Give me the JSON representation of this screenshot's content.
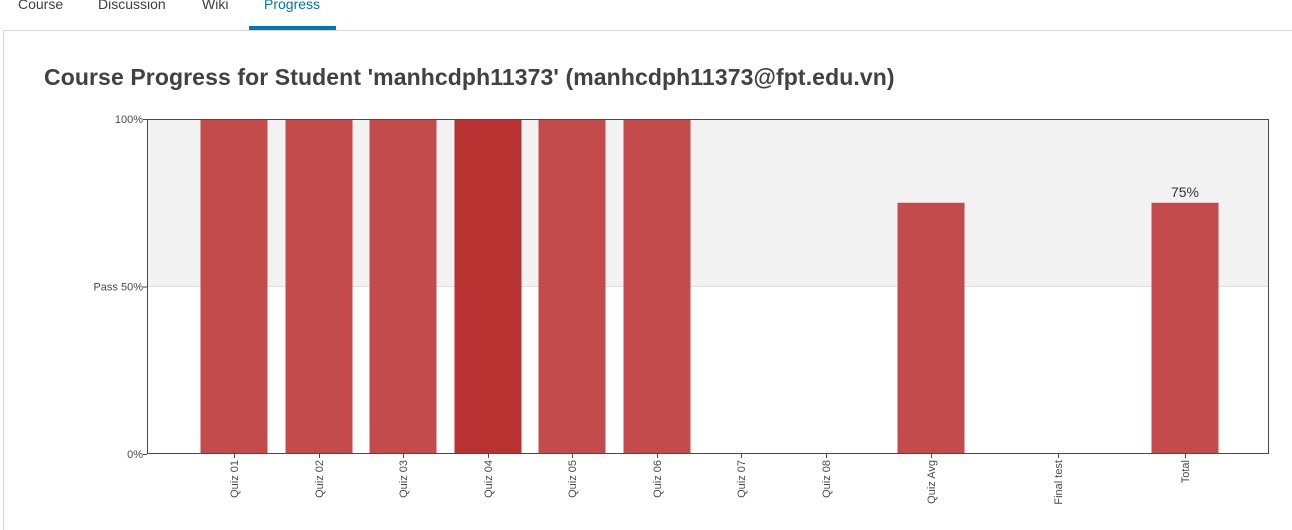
{
  "tabs": [
    {
      "label": "Course",
      "active": false
    },
    {
      "label": "Discussion",
      "active": false
    },
    {
      "label": "Wiki",
      "active": false
    },
    {
      "label": "Progress",
      "active": true
    }
  ],
  "page_title": "Course Progress for Student 'manhcdph11373' (manhcdph11373@fpt.edu.vn)",
  "colors": {
    "accent": "#0075b4",
    "bar": "#c44b4b",
    "bar_highlight": "#b83232",
    "pass_band": "#f2f2f2"
  },
  "chart_data": {
    "type": "bar",
    "title": "",
    "xlabel": "",
    "ylabel": "",
    "ylim": [
      0,
      100
    ],
    "grid": false,
    "y_ticks": [
      {
        "value": 0,
        "label": "0%"
      },
      {
        "value": 50,
        "label": "Pass 50%"
      },
      {
        "value": 100,
        "label": "100%"
      }
    ],
    "pass_threshold": 50,
    "categories": [
      "Quiz 01",
      "Quiz 02",
      "Quiz 03",
      "Quiz 04",
      "Quiz 05",
      "Quiz 06",
      "Quiz 07",
      "Quiz 08",
      "Quiz Avg",
      "Final test",
      "Total"
    ],
    "values": [
      100,
      100,
      100,
      100,
      100,
      100,
      0,
      0,
      75,
      0,
      75
    ],
    "highlighted_category": "Quiz 04",
    "data_labels": [
      {
        "category": "Total",
        "label": "75%"
      }
    ]
  }
}
